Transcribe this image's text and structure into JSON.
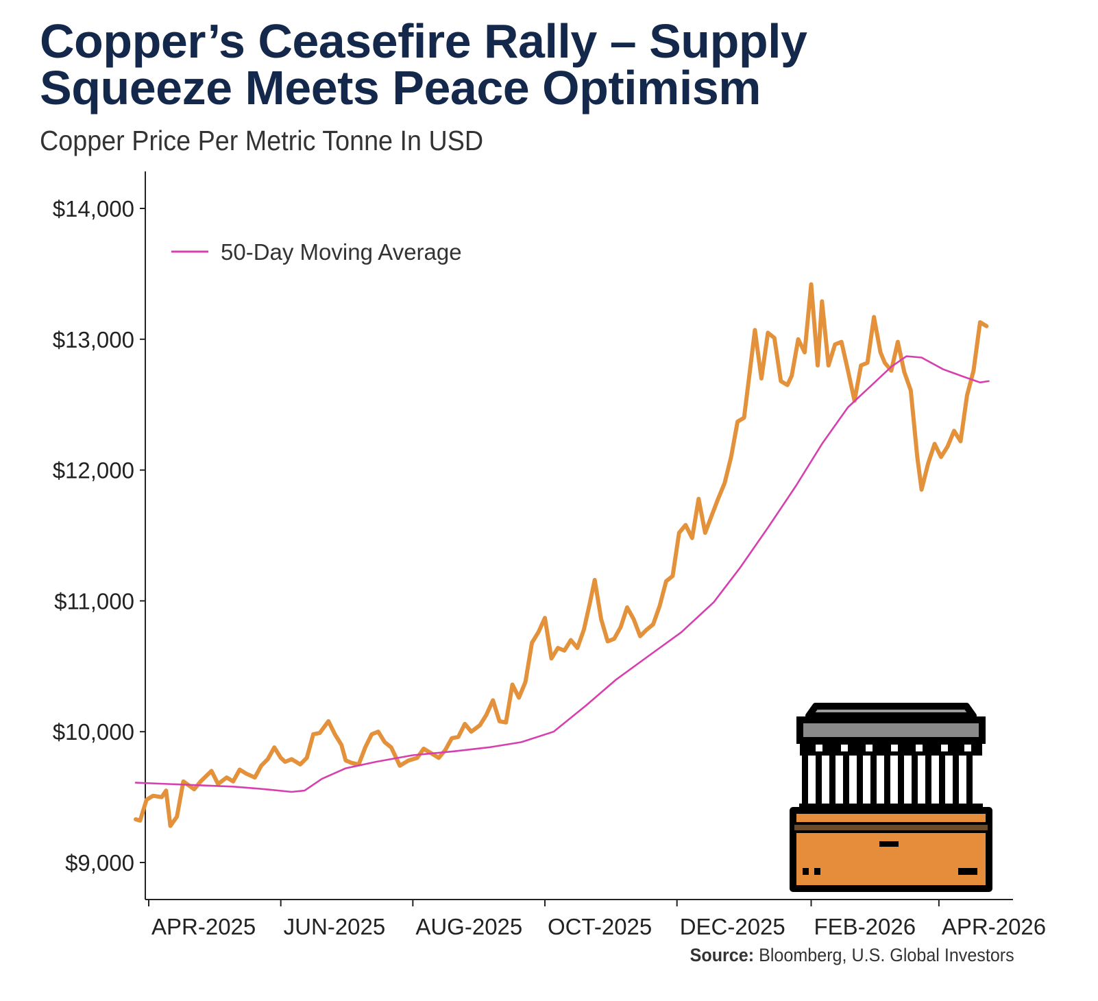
{
  "header": {
    "title_line1": "Copper’s Ceasefire Rally – Supply",
    "title_line2": "Squeeze Meets Peace Optimism",
    "subtitle": "Copper Price Per Metric Tonne In USD"
  },
  "source": {
    "label": "Source:",
    "text": "Bloomberg, U.S. Global Investors"
  },
  "colors": {
    "price_line": "#e3913a",
    "moving_average_line": "#d63fae",
    "title": "#13284b"
  },
  "icon": "bank-vault-icon",
  "chart_data": {
    "type": "line",
    "title": "Copper’s Ceasefire Rally – Supply Squeeze Meets Peace Optimism",
    "subtitle": "Copper Price Per Metric Tonne In USD",
    "xlabel": "",
    "ylabel": "",
    "x_range": [
      "2025-04-01",
      "2026-04-27"
    ],
    "ylim": [
      8750,
      14250
    ],
    "y_ticks": [
      9000,
      10000,
      11000,
      12000,
      13000,
      14000
    ],
    "y_tick_labels": [
      "$9,000",
      "$10,000",
      "$11,000",
      "$12,000",
      "$13,000",
      "$14,000"
    ],
    "x_ticks": [
      "2025-04-01",
      "2025-06-01",
      "2025-08-01",
      "2025-10-01",
      "2025-12-01",
      "2026-02-01",
      "2026-04-01"
    ],
    "x_tick_labels": [
      "APR-2025",
      "JUN-2025",
      "AUG-2025",
      "OCT-2025",
      "DEC-2025",
      "FEB-2026",
      "APR-2026"
    ],
    "grid": false,
    "legend": {
      "position": "top-left",
      "entries": [
        "50-Day Moving Average"
      ]
    },
    "series": [
      {
        "name": "",
        "color": "#e3913a",
        "points": [
          [
            "2025-03-26",
            9330
          ],
          [
            "2025-03-28",
            9320
          ],
          [
            "2025-03-31",
            9480
          ],
          [
            "2025-04-03",
            9510
          ],
          [
            "2025-04-07",
            9500
          ],
          [
            "2025-04-09",
            9550
          ],
          [
            "2025-04-11",
            9280
          ],
          [
            "2025-04-14",
            9350
          ],
          [
            "2025-04-17",
            9620
          ],
          [
            "2025-04-22",
            9560
          ],
          [
            "2025-04-25",
            9620
          ],
          [
            "2025-04-30",
            9700
          ],
          [
            "2025-05-03",
            9600
          ],
          [
            "2025-05-07",
            9650
          ],
          [
            "2025-05-10",
            9620
          ],
          [
            "2025-05-13",
            9710
          ],
          [
            "2025-05-16",
            9680
          ],
          [
            "2025-05-20",
            9650
          ],
          [
            "2025-05-23",
            9740
          ],
          [
            "2025-05-26",
            9790
          ],
          [
            "2025-05-29",
            9880
          ],
          [
            "2025-06-01",
            9800
          ],
          [
            "2025-06-03",
            9770
          ],
          [
            "2025-06-06",
            9790
          ],
          [
            "2025-06-10",
            9750
          ],
          [
            "2025-06-13",
            9800
          ],
          [
            "2025-06-16",
            9980
          ],
          [
            "2025-06-19",
            9990
          ],
          [
            "2025-06-23",
            10080
          ],
          [
            "2025-06-26",
            9980
          ],
          [
            "2025-06-29",
            9900
          ],
          [
            "2025-07-01",
            9780
          ],
          [
            "2025-07-04",
            9760
          ],
          [
            "2025-07-07",
            9750
          ],
          [
            "2025-07-10",
            9880
          ],
          [
            "2025-07-13",
            9980
          ],
          [
            "2025-07-16",
            10000
          ],
          [
            "2025-07-19",
            9920
          ],
          [
            "2025-07-22",
            9880
          ],
          [
            "2025-07-26",
            9740
          ],
          [
            "2025-07-30",
            9780
          ],
          [
            "2025-08-03",
            9800
          ],
          [
            "2025-08-06",
            9870
          ],
          [
            "2025-08-09",
            9840
          ],
          [
            "2025-08-13",
            9800
          ],
          [
            "2025-08-16",
            9860
          ],
          [
            "2025-08-19",
            9950
          ],
          [
            "2025-08-22",
            9960
          ],
          [
            "2025-08-25",
            10060
          ],
          [
            "2025-08-28",
            10000
          ],
          [
            "2025-09-01",
            10050
          ],
          [
            "2025-09-04",
            10130
          ],
          [
            "2025-09-07",
            10240
          ],
          [
            "2025-09-10",
            10080
          ],
          [
            "2025-09-13",
            10070
          ],
          [
            "2025-09-16",
            10360
          ],
          [
            "2025-09-19",
            10260
          ],
          [
            "2025-09-22",
            10380
          ],
          [
            "2025-09-25",
            10680
          ],
          [
            "2025-09-28",
            10760
          ],
          [
            "2025-10-01",
            10870
          ],
          [
            "2025-10-04",
            10560
          ],
          [
            "2025-10-07",
            10640
          ],
          [
            "2025-10-10",
            10620
          ],
          [
            "2025-10-13",
            10700
          ],
          [
            "2025-10-16",
            10640
          ],
          [
            "2025-10-19",
            10780
          ],
          [
            "2025-10-22",
            11000
          ],
          [
            "2025-10-24",
            11160
          ],
          [
            "2025-10-27",
            10860
          ],
          [
            "2025-10-30",
            10690
          ],
          [
            "2025-11-02",
            10710
          ],
          [
            "2025-11-05",
            10800
          ],
          [
            "2025-11-08",
            10950
          ],
          [
            "2025-11-11",
            10860
          ],
          [
            "2025-11-14",
            10730
          ],
          [
            "2025-11-17",
            10780
          ],
          [
            "2025-11-20",
            10820
          ],
          [
            "2025-11-23",
            10960
          ],
          [
            "2025-11-26",
            11150
          ],
          [
            "2025-11-29",
            11190
          ],
          [
            "2025-12-02",
            11520
          ],
          [
            "2025-12-05",
            11580
          ],
          [
            "2025-12-08",
            11480
          ],
          [
            "2025-12-11",
            11780
          ],
          [
            "2025-12-14",
            11520
          ],
          [
            "2025-12-17",
            11650
          ],
          [
            "2025-12-20",
            11780
          ],
          [
            "2025-12-23",
            11900
          ],
          [
            "2025-12-26",
            12100
          ],
          [
            "2025-12-29",
            12370
          ],
          [
            "2026-01-01",
            12400
          ],
          [
            "2026-01-04",
            12800
          ],
          [
            "2026-01-06",
            13070
          ],
          [
            "2026-01-09",
            12700
          ],
          [
            "2026-01-12",
            13050
          ],
          [
            "2026-01-15",
            13010
          ],
          [
            "2026-01-18",
            12680
          ],
          [
            "2026-01-21",
            12650
          ],
          [
            "2026-01-23",
            12720
          ],
          [
            "2026-01-26",
            13000
          ],
          [
            "2026-01-29",
            12900
          ],
          [
            "2026-02-01",
            13420
          ],
          [
            "2026-02-04",
            12800
          ],
          [
            "2026-02-06",
            13290
          ],
          [
            "2026-02-09",
            12800
          ],
          [
            "2026-02-12",
            12960
          ],
          [
            "2026-02-15",
            12980
          ],
          [
            "2026-02-18",
            12760
          ],
          [
            "2026-02-21",
            12530
          ],
          [
            "2026-02-24",
            12800
          ],
          [
            "2026-02-27",
            12820
          ],
          [
            "2026-03-02",
            13170
          ],
          [
            "2026-03-05",
            12900
          ],
          [
            "2026-03-07",
            12820
          ],
          [
            "2026-03-10",
            12760
          ],
          [
            "2026-03-13",
            12980
          ],
          [
            "2026-03-16",
            12750
          ],
          [
            "2026-03-19",
            12610
          ],
          [
            "2026-03-22",
            12100
          ],
          [
            "2026-03-24",
            11850
          ],
          [
            "2026-03-27",
            12050
          ],
          [
            "2026-03-30",
            12200
          ],
          [
            "2026-04-02",
            12100
          ],
          [
            "2026-04-05",
            12180
          ],
          [
            "2026-04-08",
            12300
          ],
          [
            "2026-04-11",
            12220
          ],
          [
            "2026-04-14",
            12570
          ],
          [
            "2026-04-17",
            12760
          ],
          [
            "2026-04-20",
            13130
          ],
          [
            "2026-04-23",
            13100
          ]
        ]
      },
      {
        "name": "50-Day Moving Average",
        "color": "#d63fae",
        "points": [
          [
            "2025-03-26",
            9610
          ],
          [
            "2025-04-10",
            9600
          ],
          [
            "2025-04-25",
            9590
          ],
          [
            "2025-05-10",
            9580
          ],
          [
            "2025-05-25",
            9560
          ],
          [
            "2025-06-06",
            9540
          ],
          [
            "2025-06-12",
            9550
          ],
          [
            "2025-06-20",
            9640
          ],
          [
            "2025-07-01",
            9720
          ],
          [
            "2025-07-15",
            9770
          ],
          [
            "2025-08-01",
            9820
          ],
          [
            "2025-08-20",
            9850
          ],
          [
            "2025-09-05",
            9880
          ],
          [
            "2025-09-20",
            9920
          ],
          [
            "2025-10-05",
            10000
          ],
          [
            "2025-10-20",
            10200
          ],
          [
            "2025-11-03",
            10400
          ],
          [
            "2025-11-18",
            10580
          ],
          [
            "2025-12-03",
            10760
          ],
          [
            "2025-12-18",
            10990
          ],
          [
            "2025-12-30",
            11250
          ],
          [
            "2026-01-12",
            11560
          ],
          [
            "2026-01-25",
            11880
          ],
          [
            "2026-02-06",
            12200
          ],
          [
            "2026-02-18",
            12480
          ],
          [
            "2026-03-01",
            12650
          ],
          [
            "2026-03-10",
            12790
          ],
          [
            "2026-03-17",
            12870
          ],
          [
            "2026-03-24",
            12860
          ],
          [
            "2026-04-03",
            12770
          ],
          [
            "2026-04-13",
            12710
          ],
          [
            "2026-04-20",
            12670
          ],
          [
            "2026-04-24",
            12680
          ]
        ]
      }
    ]
  }
}
